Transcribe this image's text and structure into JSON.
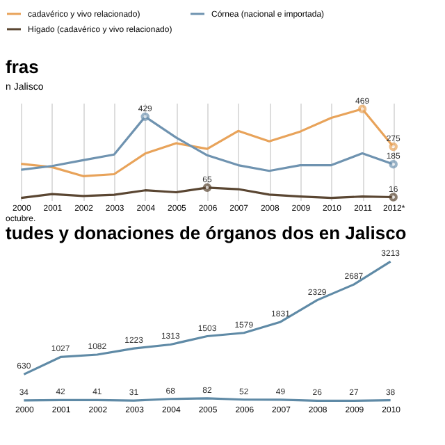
{
  "chart_data": [
    {
      "type": "line",
      "title": "fras",
      "subtitle": "n Jalisco",
      "categories": [
        "2000",
        "2001",
        "2002",
        "2003",
        "2004",
        "2005",
        "2006",
        "2007",
        "2008",
        "2009",
        "2010",
        "2011",
        "2012*"
      ],
      "legend": "top",
      "tick_labels": "x",
      "grid": "x",
      "marker": "none",
      "annotations": [
        "octubre."
      ],
      "series": [
        {
          "name": "cadavérico y vivo relacionado)",
          "color": "#e8a35a",
          "values": [
            187,
            170,
            124,
            134,
            240,
            293,
            264,
            356,
            303,
            353,
            423,
            469,
            275
          ],
          "value_labels": [
            null,
            null,
            null,
            null,
            null,
            null,
            null,
            null,
            null,
            null,
            null,
            "469",
            "275"
          ]
        },
        {
          "name": "Córnea (nacional e importada)",
          "color": "#6f93b0",
          "values": [
            157,
            176,
            206,
            235,
            429,
            322,
            231,
            180,
            151,
            180,
            180,
            241,
            185
          ],
          "value_labels": [
            null,
            null,
            null,
            null,
            "429",
            null,
            null,
            null,
            null,
            null,
            null,
            null,
            "185"
          ]
        },
        {
          "name": "Hígado (cadavérico y vivo relacionado)",
          "color": "#5a4632",
          "values": [
            12,
            32,
            22,
            28,
            51,
            41,
            65,
            57,
            29,
            19,
            12,
            19,
            16
          ],
          "value_labels": [
            null,
            null,
            null,
            null,
            null,
            null,
            "65",
            null,
            null,
            null,
            null,
            null,
            "16"
          ]
        }
      ]
    },
    {
      "type": "line",
      "title": "tudes y donaciones de órganos dos en Jalisco",
      "categories": [
        "2000",
        "2001",
        "2002",
        "2003",
        "2004",
        "2005",
        "2006",
        "2007",
        "2008",
        "2009",
        "2010"
      ],
      "tick_labels": "x",
      "data_labels": true,
      "marker": "none",
      "series": [
        {
          "color": "#5f8aa6",
          "values": [
            630,
            1027,
            1082,
            1223,
            1313,
            1503,
            1579,
            1831,
            2329,
            2687,
            3213
          ]
        },
        {
          "color": "#5f8aa6",
          "values": [
            34,
            42,
            41,
            31,
            68,
            82,
            52,
            49,
            26,
            27,
            38
          ]
        }
      ]
    }
  ]
}
